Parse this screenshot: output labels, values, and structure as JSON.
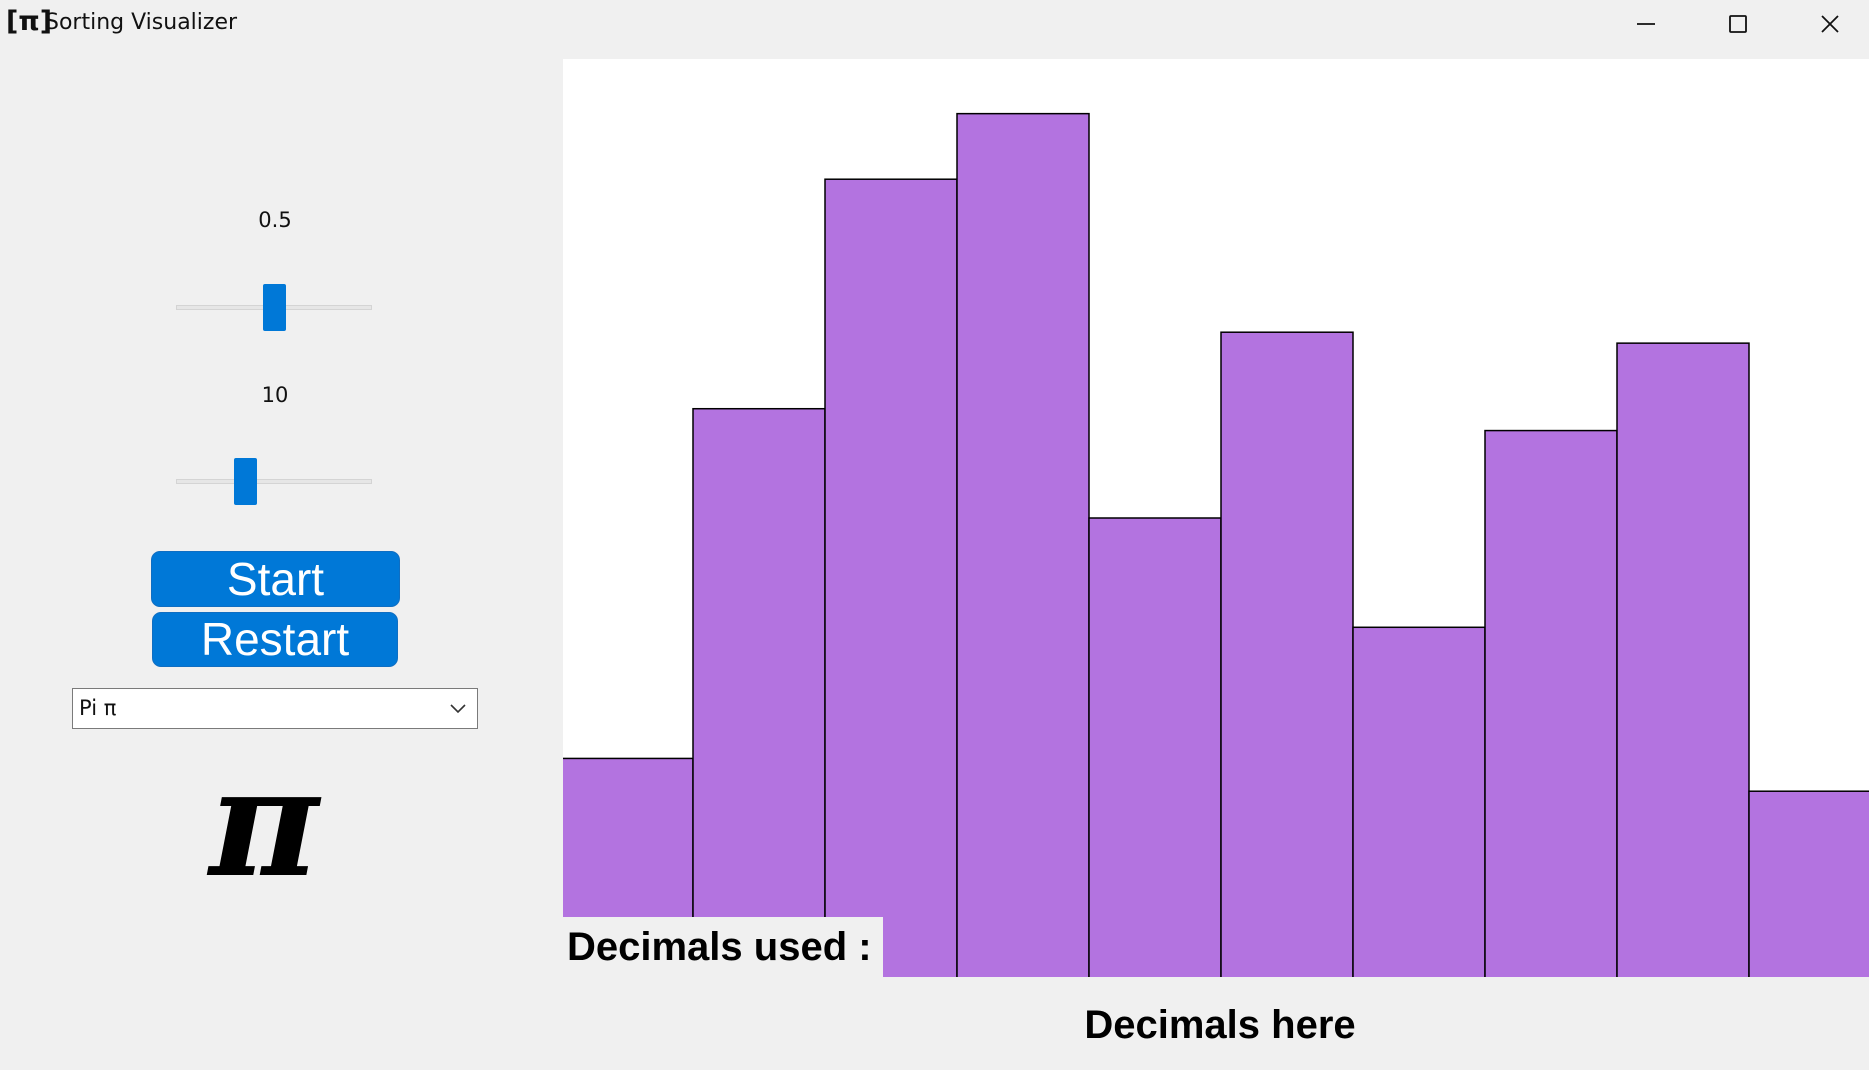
{
  "window": {
    "title": "Sorting Visualizer",
    "icon_text": "[π]",
    "controls": [
      "minimize",
      "maximize",
      "close"
    ]
  },
  "controls": {
    "speed_label": "0.5",
    "speed_value": 0.5,
    "count_label": "10",
    "count_value": 10,
    "start_label": "Start",
    "restart_label": "Restart",
    "constant_select": "Pi π",
    "symbol": "π",
    "accent_color": "#0078d7"
  },
  "labels": {
    "decimals_used": "Decimals used :",
    "decimals_here": "Decimals here"
  },
  "chart_data": {
    "type": "bar",
    "bar_color": "#b373e0",
    "edge_color": "#000000",
    "values": [
      2,
      5.2,
      7.3,
      7.9,
      4.2,
      5.9,
      3.2,
      5.0,
      5.8,
      1.7
    ],
    "ylim": [
      0,
      8.4
    ]
  }
}
